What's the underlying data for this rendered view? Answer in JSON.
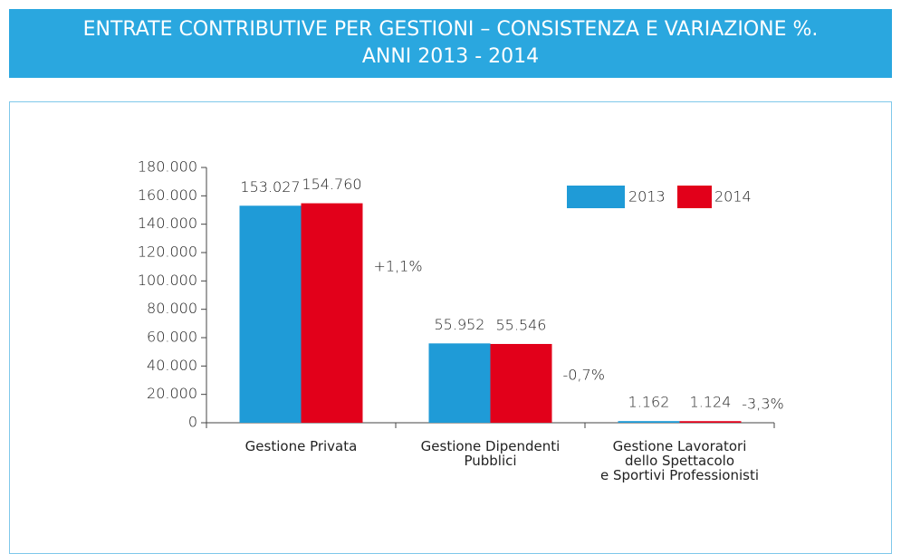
{
  "chart_data": {
    "type": "bar",
    "title": "ENTRATE CONTRIBUTIVE PER GESTIONI – CONSISTENZA E VARIAZIONE %.\nANNI 2013 - 2014",
    "categories": [
      "Gestione Privata",
      "Gestione Dipendenti\nPubblici",
      "Gestione Lavoratori\ndello Spettacolo\ne Sportivi Professionisti"
    ],
    "series": [
      {
        "name": "2013",
        "color": "#1f9bd7",
        "values": [
          153027,
          55952,
          1162
        ],
        "value_labels": [
          "153.027",
          "55.952",
          "1.162"
        ]
      },
      {
        "name": "2014",
        "color": "#e2001a",
        "values": [
          154760,
          55546,
          1124
        ],
        "value_labels": [
          "154.760",
          "55.546",
          "1.124"
        ]
      }
    ],
    "annotations": [
      "+1,1%",
      "-0,7%",
      "-3,3%"
    ],
    "ylim": [
      0,
      180000
    ],
    "yticks": [
      0,
      {
        "value": 20000,
        "label": "20.000"
      },
      {
        "value": 40000,
        "label": "40.000"
      },
      {
        "value": 60000,
        "label": "60.000"
      },
      {
        "value": 80000,
        "label": "80.000"
      },
      {
        "value": 100000,
        "label": "100.000"
      },
      {
        "value": 120000,
        "label": "120.000"
      },
      {
        "value": 140000,
        "label": "140.000"
      },
      {
        "value": 160000,
        "label": "160.000"
      },
      {
        "value": 180000,
        "label": "180.000"
      }
    ],
    "legend": "top-right"
  }
}
